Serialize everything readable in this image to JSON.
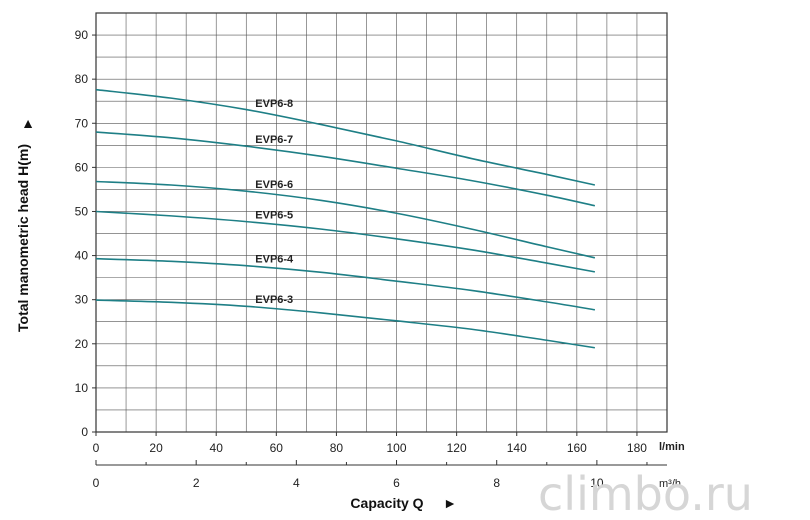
{
  "chart_data": {
    "type": "line",
    "title": "",
    "ylabel": "Total manometric head H(m)",
    "ylabel_arrow": "▲",
    "xlabel": "Capacity Q",
    "xlabel_arrow": "►",
    "x_unit_primary": "l/min",
    "x_unit_secondary": "m³/h",
    "xlim": [
      0,
      190
    ],
    "ylim": [
      0,
      95
    ],
    "x_ticks": [
      0,
      20,
      40,
      60,
      80,
      100,
      120,
      140,
      160,
      180
    ],
    "x_ticks_secondary": [
      0,
      2,
      4,
      6,
      8,
      10
    ],
    "y_ticks": [
      0,
      10,
      20,
      30,
      40,
      50,
      60,
      70,
      80,
      90
    ],
    "grid": true,
    "series": [
      {
        "name": "EVP6-8",
        "x": [
          0,
          25,
          50,
          75,
          100,
          125,
          150,
          166
        ],
        "y": [
          77.6,
          75.7,
          73.1,
          69.7,
          66.0,
          62.0,
          58.4,
          56.0
        ]
      },
      {
        "name": "EVP6-7",
        "x": [
          0,
          25,
          50,
          75,
          100,
          125,
          150,
          166
        ],
        "y": [
          68.0,
          66.7,
          64.8,
          62.5,
          59.8,
          57.0,
          53.7,
          51.3
        ]
      },
      {
        "name": "EVP6-6",
        "x": [
          0,
          25,
          50,
          75,
          100,
          125,
          150,
          166
        ],
        "y": [
          56.8,
          56.0,
          54.6,
          52.5,
          49.6,
          46.0,
          42.0,
          39.5
        ]
      },
      {
        "name": "EVP6-5",
        "x": [
          0,
          25,
          50,
          75,
          100,
          125,
          150,
          166
        ],
        "y": [
          50.0,
          49.0,
          47.7,
          46.0,
          43.8,
          41.3,
          38.3,
          36.3
        ]
      },
      {
        "name": "EVP6-4",
        "x": [
          0,
          25,
          50,
          75,
          100,
          125,
          150,
          166
        ],
        "y": [
          39.3,
          38.7,
          37.7,
          36.2,
          34.2,
          32.1,
          29.5,
          27.7
        ]
      },
      {
        "name": "EVP6-3",
        "x": [
          0,
          25,
          50,
          75,
          100,
          125,
          150,
          166
        ],
        "y": [
          29.9,
          29.4,
          28.5,
          27.0,
          25.2,
          23.3,
          20.8,
          19.1
        ]
      }
    ],
    "line_color": "#1e7f86"
  },
  "watermark": "climbo.ru"
}
